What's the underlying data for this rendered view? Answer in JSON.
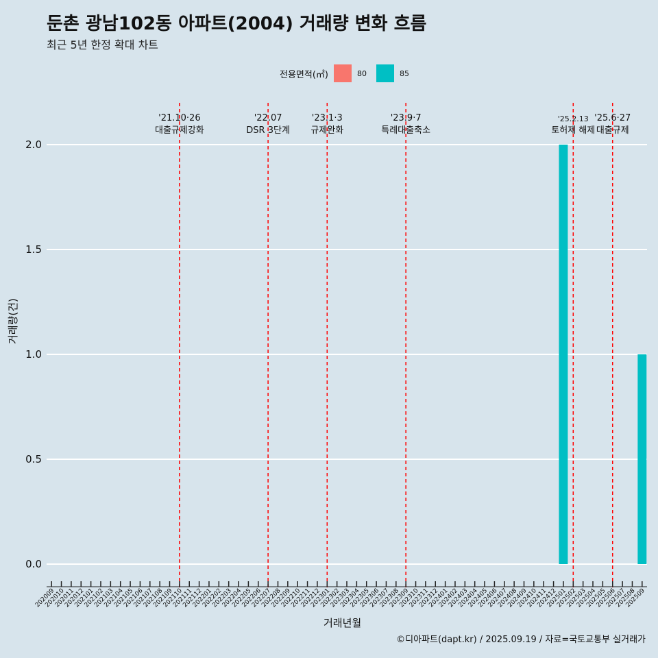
{
  "chart_data": {
    "type": "bar",
    "title": "둔촌 광남102동 아파트(2004) 거래량 변화 흐름",
    "subtitle": "최근 5년 한정 확대 차트",
    "xlabel": "거래년월",
    "ylabel": "거래량(건)",
    "caption": "©디아파트(dapt.kr) / 2025.09.19 / 자료=국토교통부 실거래가",
    "legend_title": "전용면적(㎡)",
    "legend_position": "top",
    "ylim": [
      0,
      2
    ],
    "y_ticks": [
      "0.0",
      "0.5",
      "1.0",
      "1.5",
      "2.0"
    ],
    "categories": [
      "202009",
      "202010",
      "202011",
      "202012",
      "202101",
      "202102",
      "202103",
      "202104",
      "202105",
      "202106",
      "202107",
      "202108",
      "202109",
      "202110",
      "202111",
      "202112",
      "202201",
      "202202",
      "202203",
      "202204",
      "202205",
      "202206",
      "202207",
      "202208",
      "202209",
      "202210",
      "202211",
      "202212",
      "202301",
      "202302",
      "202303",
      "202304",
      "202305",
      "202306",
      "202307",
      "202308",
      "202309",
      "202310",
      "202311",
      "202312",
      "202401",
      "202402",
      "202403",
      "202404",
      "202405",
      "202406",
      "202407",
      "202408",
      "202409",
      "202410",
      "202411",
      "202412",
      "202501",
      "202502",
      "202503",
      "202504",
      "202505",
      "202506",
      "202507",
      "202508",
      "202509"
    ],
    "series": [
      {
        "name": "80",
        "color": "#f8766d",
        "values": {}
      },
      {
        "name": "85",
        "color": "#00bfc4",
        "values": {
          "202501": 2,
          "202509": 1
        }
      }
    ],
    "events": [
      {
        "category": "202110",
        "date": "'21.10·26",
        "label": "대출규제강화"
      },
      {
        "category": "202207",
        "date": "'22.07",
        "label": "DSR 3단계"
      },
      {
        "category": "202301",
        "date": "'23.1·3",
        "label": "규제완화"
      },
      {
        "category": "202309",
        "date": "'23.9·7",
        "label": "특례대출축소"
      },
      {
        "category": "202502",
        "date": "'25.2.13",
        "label": "토허제 해제"
      },
      {
        "category": "202506",
        "date": "'25.6·27",
        "label": "대출규제"
      }
    ]
  }
}
